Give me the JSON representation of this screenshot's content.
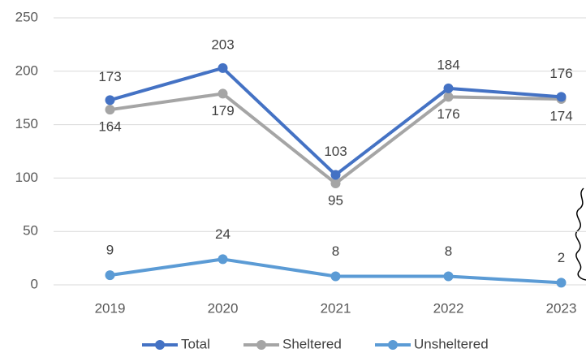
{
  "chart_data": {
    "type": "line",
    "categories": [
      "2019",
      "2020",
      "2021",
      "2022",
      "2023"
    ],
    "series": [
      {
        "name": "Total",
        "color": "#4472c4",
        "values": [
          173,
          203,
          103,
          184,
          176
        ]
      },
      {
        "name": "Sheltered",
        "color": "#a5a5a5",
        "values": [
          164,
          179,
          95,
          176,
          174
        ]
      },
      {
        "name": "Unsheltered",
        "color": "#5b9bd5",
        "values": [
          9,
          24,
          8,
          8,
          2
        ]
      }
    ],
    "ylim": [
      0,
      250
    ],
    "yticks": [
      0,
      50,
      100,
      150,
      200,
      250
    ],
    "grid": true,
    "legend": "bottom"
  }
}
